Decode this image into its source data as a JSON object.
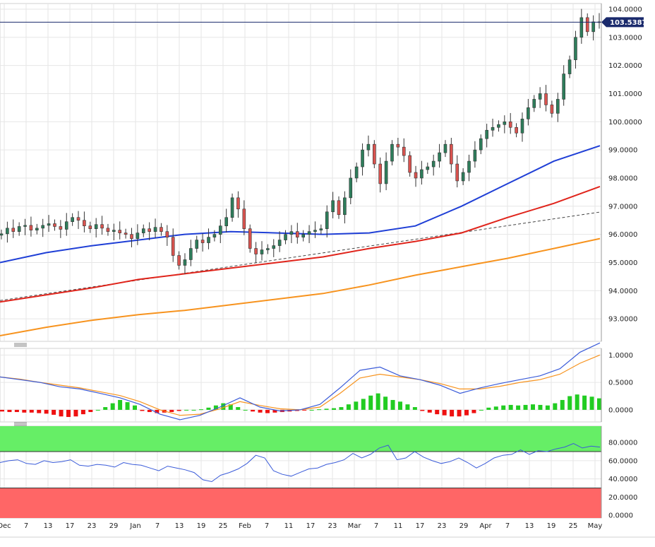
{
  "chart_data": {
    "type": "candlestick",
    "colors": {
      "up": "#2e7d5b",
      "down": "#d9534f",
      "sma_fast": "#1f3fd6",
      "sma_mid": "#e0241b",
      "sma_slow": "#f7931e",
      "trendline": "#444444",
      "price_line": "#1a2a6c",
      "macd_line": "#3a5bd9",
      "signal_line": "#f7931e",
      "hist_pos": "#22cc22",
      "hist_neg": "#ee1111",
      "rsi_line": "#3a5bd9",
      "overbought_fill": "#66ee66",
      "oversold_fill": "#ff6666"
    },
    "x_axis": {
      "tick_labels": [
        "Dec",
        "7",
        "13",
        "17",
        "23",
        "29",
        "Jan",
        "7",
        "13",
        "19",
        "25",
        "Feb",
        "7",
        "11",
        "17",
        "23",
        "Mar",
        "7",
        "11",
        "17",
        "23",
        "29",
        "Apr",
        "7",
        "13",
        "19",
        "25",
        "May"
      ]
    },
    "price_panel": {
      "ylim": [
        92.2,
        104.2
      ],
      "tick_labels": [
        "104.0000",
        "103.0000",
        "102.0000",
        "101.0000",
        "100.0000",
        "99.0000",
        "98.0000",
        "97.0000",
        "96.0000",
        "95.0000",
        "94.0000",
        "93.0000"
      ],
      "tick_values": [
        104,
        103,
        102,
        101,
        100,
        99,
        98,
        97,
        96,
        95,
        94,
        93
      ],
      "last_price_label": "103.5387",
      "last_price": 103.5387,
      "closes": [
        96.02,
        96.22,
        96.1,
        96.28,
        96.32,
        96.15,
        96.22,
        96.32,
        96.38,
        96.28,
        96.18,
        96.45,
        96.6,
        96.5,
        96.3,
        96.2,
        96.35,
        96.22,
        96.1,
        96.15,
        96.05,
        96.0,
        95.85,
        96.05,
        96.2,
        96.1,
        96.25,
        96.1,
        95.9,
        95.25,
        94.9,
        95.1,
        95.5,
        95.8,
        95.7,
        95.9,
        96.0,
        96.3,
        96.6,
        97.3,
        96.9,
        96.2,
        95.5,
        95.3,
        95.45,
        95.5,
        95.6,
        95.8,
        96.0,
        96.1,
        95.9,
        96.0,
        96.1,
        96.15,
        96.2,
        96.8,
        97.2,
        96.7,
        97.3,
        98.0,
        98.4,
        99.0,
        99.2,
        98.5,
        97.8,
        98.6,
        99.2,
        99.1,
        98.8,
        98.2,
        98.0,
        98.3,
        98.4,
        98.6,
        98.9,
        99.2,
        98.5,
        97.9,
        98.2,
        98.6,
        99.0,
        99.4,
        99.7,
        99.8,
        99.9,
        100.0,
        99.8,
        99.6,
        100.1,
        100.5,
        100.8,
        101.0,
        100.6,
        100.3,
        100.8,
        101.7,
        102.2,
        103.0,
        103.7,
        103.2,
        103.55,
        103.54
      ],
      "sma_fast": [
        95.0,
        95.35,
        95.6,
        95.8,
        96.0,
        96.1,
        96.05,
        96.0,
        96.05,
        96.3,
        97.0,
        97.8,
        98.6,
        99.15
      ],
      "sma_mid": [
        93.6,
        93.85,
        94.1,
        94.4,
        94.6,
        94.8,
        95.0,
        95.2,
        95.5,
        95.75,
        96.05,
        96.6,
        97.1,
        97.7
      ],
      "sma_slow": [
        92.4,
        92.7,
        92.95,
        93.15,
        93.3,
        93.5,
        93.7,
        93.9,
        94.2,
        94.55,
        94.85,
        95.15,
        95.5,
        95.85
      ]
    },
    "macd_panel": {
      "ylim": [
        -0.22,
        1.12
      ],
      "tick_labels": [
        "1.0000",
        "0.5000",
        "0.0000"
      ],
      "tick_values": [
        1.0,
        0.5,
        0.0
      ],
      "macd": [
        0.6,
        0.55,
        0.5,
        0.42,
        0.38,
        0.3,
        0.22,
        0.1,
        -0.08,
        -0.18,
        -0.1,
        0.05,
        0.22,
        0.05,
        -0.02,
        0.0,
        0.1,
        0.4,
        0.72,
        0.78,
        0.62,
        0.55,
        0.45,
        0.3,
        0.4,
        0.48,
        0.55,
        0.62,
        0.75,
        1.05,
        1.22
      ],
      "signal": [
        0.6,
        0.56,
        0.5,
        0.45,
        0.4,
        0.33,
        0.26,
        0.15,
        0.0,
        -0.1,
        -0.08,
        0.02,
        0.15,
        0.08,
        0.02,
        0.0,
        0.05,
        0.3,
        0.58,
        0.65,
        0.6,
        0.55,
        0.48,
        0.38,
        0.38,
        0.43,
        0.5,
        0.55,
        0.65,
        0.85,
        1.0
      ],
      "histogram": [
        -0.03,
        -0.04,
        -0.04,
        -0.05,
        -0.05,
        -0.06,
        -0.07,
        -0.09,
        -0.12,
        -0.13,
        -0.12,
        -0.08,
        -0.04,
        0.0,
        0.05,
        0.12,
        0.18,
        0.14,
        0.08,
        -0.02,
        -0.04,
        -0.06,
        -0.05,
        -0.04,
        -0.02,
        0.0,
        0.0,
        0.01,
        0.04,
        0.08,
        0.12,
        0.1,
        0.05,
        0.0,
        -0.03,
        -0.05,
        -0.06,
        -0.05,
        -0.04,
        -0.03,
        -0.02,
        -0.01,
        0.0,
        0.01,
        0.02,
        0.03,
        0.05,
        0.1,
        0.15,
        0.2,
        0.26,
        0.3,
        0.24,
        0.18,
        0.15,
        0.1,
        0.05,
        -0.02,
        -0.05,
        -0.08,
        -0.1,
        -0.12,
        -0.12,
        -0.1,
        -0.06,
        0.0,
        0.04,
        0.06,
        0.08,
        0.09,
        0.08,
        0.09,
        0.1,
        0.09,
        0.08,
        0.12,
        0.18,
        0.25,
        0.28,
        0.26,
        0.24,
        0.21
      ]
    },
    "rsi_panel": {
      "ylim": [
        0,
        100
      ],
      "tick_labels": [
        "80.0000",
        "60.0000",
        "40.0000",
        "20.0000",
        "0.0000"
      ],
      "tick_values": [
        80,
        60,
        40,
        20,
        0
      ],
      "overbought": 70,
      "oversold": 30,
      "rsi": [
        58,
        60,
        61,
        57,
        56,
        60,
        58,
        59,
        61,
        55,
        54,
        56,
        55,
        53,
        58,
        56,
        55,
        52,
        49,
        54,
        52,
        50,
        47,
        39,
        37,
        44,
        47,
        51,
        57,
        66,
        63,
        49,
        45,
        43,
        47,
        51,
        52,
        56,
        58,
        61,
        68,
        63,
        67,
        74,
        77,
        61,
        63,
        70,
        64,
        60,
        57,
        59,
        63,
        58,
        52,
        57,
        63,
        66,
        67,
        72,
        67,
        71,
        70,
        73,
        75,
        79,
        74,
        76,
        75
      ]
    }
  }
}
